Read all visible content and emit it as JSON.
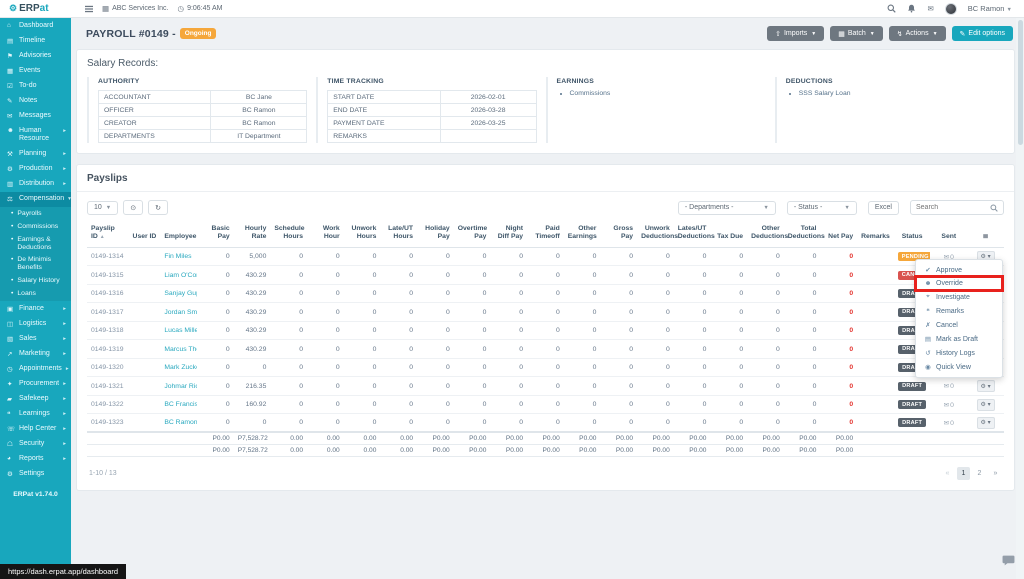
{
  "colors": {
    "accent": "#18a7bd",
    "badge_orange": "#f5a73b",
    "badge_red": "#d9534f",
    "badge_dark": "#57616b",
    "net_red": "#e3342f",
    "annotation_red": "#e8211d"
  },
  "topbar": {
    "logo_erp": "ERP",
    "logo_at": "at",
    "company": "ABC Services Inc.",
    "time": "9:06:45 AM",
    "user": "BC Ramon"
  },
  "sidebar": {
    "version": "ERPat v1.74.0",
    "items": [
      {
        "name": "dashboard",
        "icon": "⌂",
        "label": "Dashboard"
      },
      {
        "name": "timeline",
        "icon": "▤",
        "label": "Timeline"
      },
      {
        "name": "advisories",
        "icon": "⚑",
        "label": "Advisories"
      },
      {
        "name": "events",
        "icon": "▦",
        "label": "Events"
      },
      {
        "name": "to-do",
        "icon": "☑",
        "label": "To-do"
      },
      {
        "name": "notes",
        "icon": "✎",
        "label": "Notes"
      },
      {
        "name": "messages",
        "icon": "✉",
        "label": "Messages"
      },
      {
        "name": "human-resource",
        "icon": "☻",
        "label": "Human Resource",
        "chevron": "closed"
      },
      {
        "name": "planning",
        "icon": "⚒",
        "label": "Planning",
        "chevron": "closed"
      },
      {
        "name": "production",
        "icon": "⚙",
        "label": "Production",
        "chevron": "closed"
      },
      {
        "name": "distribution",
        "icon": "▥",
        "label": "Distribution",
        "chevron": "closed"
      },
      {
        "name": "compensation",
        "icon": "⚖",
        "label": "Compensation",
        "chevron": "open",
        "active": true,
        "children": [
          {
            "label": "Payrolls"
          },
          {
            "label": "Commissions"
          },
          {
            "label": "Earnings & Deductions"
          },
          {
            "label": "De Minimis Benefits"
          },
          {
            "label": "Salary History"
          },
          {
            "label": "Loans"
          }
        ]
      },
      {
        "name": "finance",
        "icon": "▣",
        "label": "Finance",
        "chevron": "closed"
      },
      {
        "name": "logistics",
        "icon": "◫",
        "label": "Logistics",
        "chevron": "closed"
      },
      {
        "name": "sales",
        "icon": "▧",
        "label": "Sales",
        "chevron": "closed"
      },
      {
        "name": "marketing",
        "icon": "↗",
        "label": "Marketing",
        "chevron": "closed"
      },
      {
        "name": "appointments",
        "icon": "◷",
        "label": "Appointments",
        "chevron": "closed"
      },
      {
        "name": "procurement",
        "icon": "✦",
        "label": "Procurement",
        "chevron": "closed"
      },
      {
        "name": "safekeep",
        "icon": "▰",
        "label": "Safekeep",
        "chevron": "closed"
      },
      {
        "name": "learnings",
        "icon": "❝",
        "label": "Learnings",
        "chevron": "closed"
      },
      {
        "name": "help-center",
        "icon": "☏",
        "label": "Help Center",
        "chevron": "closed"
      },
      {
        "name": "security",
        "icon": "☖",
        "label": "Security",
        "chevron": "closed"
      },
      {
        "name": "reports",
        "icon": "◕",
        "label": "Reports",
        "chevron": "closed"
      },
      {
        "name": "settings",
        "icon": "⚙",
        "label": "Settings"
      }
    ]
  },
  "page": {
    "title": "PAYROLL #0149 -",
    "status_badge": "Ongoing",
    "buttons": [
      {
        "name": "imports",
        "icon_name": "upload-icon",
        "icon": "⇧",
        "label": "Imports",
        "caret": true,
        "style": "dark"
      },
      {
        "name": "batch",
        "icon_name": "grid-icon",
        "icon": "▦",
        "label": "Batch",
        "caret": true,
        "style": "dark"
      },
      {
        "name": "actions",
        "icon_name": "lightning-icon",
        "icon": "↯",
        "label": "Actions",
        "caret": true,
        "style": "dark"
      },
      {
        "name": "edit-options",
        "icon_name": "pencil-icon",
        "icon": "✎",
        "label": "Edit options",
        "caret": false,
        "style": "teal"
      }
    ]
  },
  "salary_records": {
    "title": "Salary Records:",
    "authority": {
      "title": "AUTHORITY",
      "rows": [
        [
          "ACCOUNTANT",
          "BC Jane"
        ],
        [
          "OFFICER",
          "BC Ramon"
        ],
        [
          "CREATOR",
          "BC Ramon"
        ],
        [
          "DEPARTMENTS",
          "IT Department"
        ]
      ]
    },
    "time_tracking": {
      "title": "TIME TRACKING",
      "rows": [
        [
          "START DATE",
          "2026-02-01"
        ],
        [
          "END DATE",
          "2026-03-28"
        ],
        [
          "PAYMENT DATE",
          "2026-03-25"
        ],
        [
          "REMARKS",
          ""
        ]
      ]
    },
    "earnings": {
      "title": "EARNINGS",
      "items": [
        "Commissions"
      ]
    },
    "deductions": {
      "title": "DEDUCTIONS",
      "items": [
        "SSS Salary Loan"
      ]
    }
  },
  "payslips": {
    "title": "Payslips",
    "page_size": "10",
    "filters": {
      "departments": "- Departments -",
      "status": "- Status -",
      "excel": "Excel",
      "search_placeholder": "Search"
    },
    "columns": [
      "Payslip ID",
      "User ID",
      "Employee",
      "Basic Pay",
      "Hourly Rate",
      "Schedule Hours",
      "Work Hour",
      "Unwork Hours",
      "Late/UT Hours",
      "Holiday Pay",
      "Overtime Pay",
      "Night Diff Pay",
      "Paid Timeoff",
      "Other Earnings",
      "Gross Pay",
      "Unwork Deductions",
      "Lates/UT Deductions",
      "Tax Due",
      "Other Deductions",
      "Total Deductions",
      "Net Pay",
      "Remarks",
      "Status",
      "Sent",
      ""
    ],
    "rows": [
      {
        "cells": [
          "0149-1314",
          "",
          "Fin Miles",
          "0",
          "5,000",
          "0",
          "0",
          "0",
          "0",
          "0",
          "0",
          "0",
          "0",
          "0",
          "0",
          "0",
          "0",
          "0",
          "0",
          "0",
          "0",
          ""
        ],
        "status": "PENDING",
        "status_class": "pending",
        "sent": "0"
      },
      {
        "cells": [
          "0149-1315",
          "",
          "Liam O'Connor",
          "0",
          "430.29",
          "0",
          "0",
          "0",
          "0",
          "0",
          "0",
          "0",
          "0",
          "0",
          "0",
          "0",
          "0",
          "0",
          "0",
          "0",
          "0",
          ""
        ],
        "status": "CANCELLED",
        "status_class": "cancelled",
        "sent": "0"
      },
      {
        "cells": [
          "0149-1316",
          "",
          "Sanjay Gupta",
          "0",
          "430.29",
          "0",
          "0",
          "0",
          "0",
          "0",
          "0",
          "0",
          "0",
          "0",
          "0",
          "0",
          "0",
          "0",
          "0",
          "0",
          "0",
          ""
        ],
        "status": "DRAFT",
        "status_class": "draft",
        "sent": "0"
      },
      {
        "cells": [
          "0149-1317",
          "",
          "Jordan Smith",
          "0",
          "430.29",
          "0",
          "0",
          "0",
          "0",
          "0",
          "0",
          "0",
          "0",
          "0",
          "0",
          "0",
          "0",
          "0",
          "0",
          "0",
          "0",
          ""
        ],
        "status": "DRAFT",
        "status_class": "draft",
        "sent": "0"
      },
      {
        "cells": [
          "0149-1318",
          "",
          "Lucas Miller",
          "0",
          "430.29",
          "0",
          "0",
          "0",
          "0",
          "0",
          "0",
          "0",
          "0",
          "0",
          "0",
          "0",
          "0",
          "0",
          "0",
          "0",
          "0",
          ""
        ],
        "status": "DRAFT",
        "status_class": "draft",
        "sent": "0"
      },
      {
        "cells": [
          "0149-1319",
          "",
          "Marcus Thorne",
          "0",
          "430.29",
          "0",
          "0",
          "0",
          "0",
          "0",
          "0",
          "0",
          "0",
          "0",
          "0",
          "0",
          "0",
          "0",
          "0",
          "0",
          "0",
          ""
        ],
        "status": "DRAFT",
        "status_class": "draft",
        "sent": "0"
      },
      {
        "cells": [
          "0149-1320",
          "",
          "Mark Zuckerberg",
          "0",
          "0",
          "0",
          "0",
          "0",
          "0",
          "0",
          "0",
          "0",
          "0",
          "0",
          "0",
          "0",
          "0",
          "0",
          "0",
          "0",
          "0",
          ""
        ],
        "status": "DRAFT",
        "status_class": "draft",
        "sent": "0"
      },
      {
        "cells": [
          "0149-1321",
          "",
          "Johmar Rio",
          "0",
          "216.35",
          "0",
          "0",
          "0",
          "0",
          "0",
          "0",
          "0",
          "0",
          "0",
          "0",
          "0",
          "0",
          "0",
          "0",
          "0",
          "0",
          ""
        ],
        "status": "DRAFT",
        "status_class": "draft",
        "sent": "0"
      },
      {
        "cells": [
          "0149-1322",
          "",
          "BC Francis",
          "0",
          "160.92",
          "0",
          "0",
          "0",
          "0",
          "0",
          "0",
          "0",
          "0",
          "0",
          "0",
          "0",
          "0",
          "0",
          "0",
          "0",
          "0",
          ""
        ],
        "status": "DRAFT",
        "status_class": "draft",
        "sent": "0"
      },
      {
        "cells": [
          "0149-1323",
          "",
          "BC Ramon",
          "0",
          "0",
          "0",
          "0",
          "0",
          "0",
          "0",
          "0",
          "0",
          "0",
          "0",
          "0",
          "0",
          "0",
          "0",
          "0",
          "0",
          "0",
          ""
        ],
        "status": "DRAFT",
        "status_class": "draft",
        "sent": "0"
      }
    ],
    "totals_rows": [
      [
        "",
        "",
        "",
        "P0.00",
        "P7,528.72",
        "0.00",
        "0.00",
        "0.00",
        "0.00",
        "P0.00",
        "P0.00",
        "P0.00",
        "P0.00",
        "P0.00",
        "P0.00",
        "P0.00",
        "P0.00",
        "P0.00",
        "P0.00",
        "P0.00",
        "P0.00",
        ""
      ],
      [
        "",
        "",
        "",
        "P0.00",
        "P7,528.72",
        "0.00",
        "0.00",
        "0.00",
        "0.00",
        "P0.00",
        "P0.00",
        "P0.00",
        "P0.00",
        "P0.00",
        "P0.00",
        "P0.00",
        "P0.00",
        "P0.00",
        "P0.00",
        "P0.00",
        "P0.00",
        ""
      ]
    ],
    "range": "1-10 / 13",
    "pagination": [
      {
        "label": "«",
        "state": "disabled"
      },
      {
        "label": "1",
        "state": "active"
      },
      {
        "label": "2",
        "state": ""
      },
      {
        "label": "»",
        "state": ""
      }
    ]
  },
  "action_menu": {
    "items": [
      {
        "name": "approve",
        "icon_name": "check-icon",
        "icon": "✔",
        "label": "Approve"
      },
      {
        "name": "override",
        "icon_name": "user-icon",
        "icon": "☻",
        "label": "Override",
        "annotated": true
      },
      {
        "name": "investigate",
        "icon_name": "magnifier-icon",
        "icon": "⌖",
        "label": "Investigate"
      },
      {
        "name": "remarks",
        "icon_name": "comment-icon",
        "icon": "❝",
        "label": "Remarks"
      },
      {
        "name": "cancel",
        "icon_name": "cancel-icon",
        "icon": "✗",
        "label": "Cancel"
      },
      {
        "name": "mark-as-draft",
        "icon_name": "file-icon",
        "icon": "▤",
        "label": "Mark as Draft"
      },
      {
        "name": "history-logs",
        "icon_name": "history-icon",
        "icon": "↺",
        "label": "History Logs"
      },
      {
        "name": "quick-view",
        "icon_name": "eye-icon",
        "icon": "◉",
        "label": "Quick View"
      }
    ]
  },
  "statusbar": {
    "url": "https://dash.erpat.app/dashboard"
  }
}
